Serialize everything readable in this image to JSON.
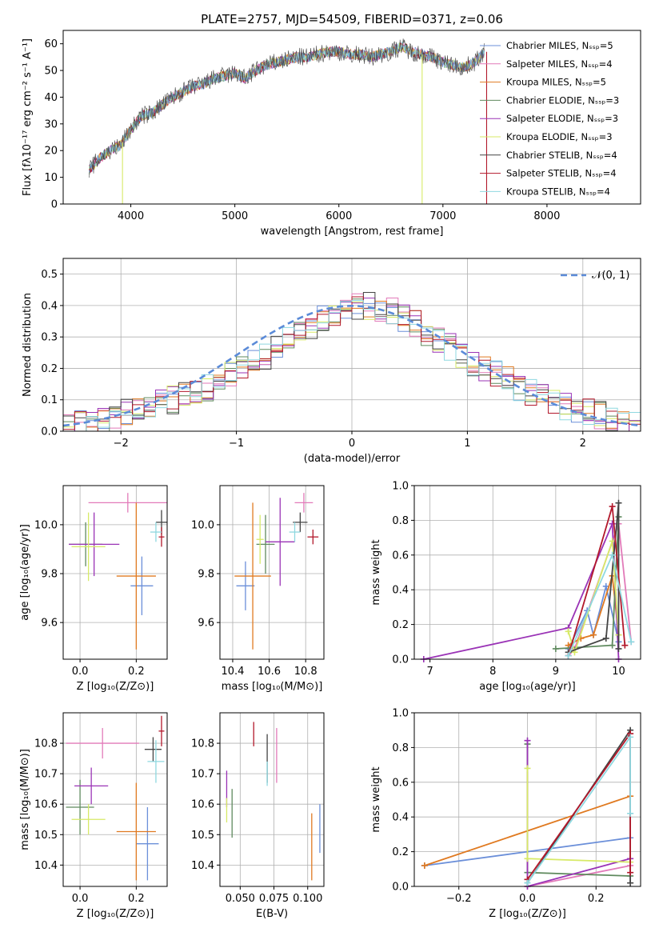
{
  "colors": [
    "#6b8fd9",
    "#e27ab9",
    "#e07a21",
    "#5f8a5e",
    "#9a33b6",
    "#d7ea67",
    "#444444",
    "#b2182b",
    "#8fd8e0"
  ],
  "chart_data": [
    {
      "id": "spectrum",
      "type": "line",
      "title": "PLATE=2757, MJD=54509, FIBERID=0371, z=0.06",
      "xlabel": "wavelength [Angstrom, rest frame]",
      "ylabel": "Flux [fλ10⁻¹⁷ erg cm⁻² s⁻¹ A⁻¹]",
      "xlim": [
        3350,
        8900
      ],
      "ylim": [
        0,
        65
      ],
      "xticks": [
        "4000",
        "5000",
        "6000",
        "7000",
        "8000"
      ],
      "yticks": [
        "0",
        "10",
        "20",
        "30",
        "40",
        "50",
        "60"
      ],
      "legend": "right",
      "series": [
        {
          "name": "Chabrier MILES, Nₛₛₚ=5"
        },
        {
          "name": "Salpeter MILES, Nₛₛₚ=4"
        },
        {
          "name": "Kroupa MILES, Nₛₛₚ=5"
        },
        {
          "name": "Chabrier ELODIE, Nₛₛₚ=3"
        },
        {
          "name": "Salpeter ELODIE, Nₛₛₚ=3"
        },
        {
          "name": "Kroupa ELODIE, Nₛₛₚ=3"
        },
        {
          "name": "Chabrier STELIB, Nₛₛₚ=4"
        },
        {
          "name": "Salpeter STELIB, Nₛₛₚ=4"
        },
        {
          "name": "Kroupa STELIB, Nₛₛₚ=4"
        }
      ],
      "continuum": {
        "x": [
          3600,
          3700,
          3800,
          3900,
          4000,
          4100,
          4200,
          4300,
          4400,
          4500,
          4600,
          4700,
          4800,
          4900,
          5000,
          5100,
          5200,
          5300,
          5400,
          5500,
          5600,
          5700,
          5800,
          5900,
          6000,
          6100,
          6200,
          6300,
          6400,
          6500,
          6600,
          6700,
          6800,
          6900,
          7000,
          7100,
          7200,
          7300,
          7400
        ],
        "y": [
          13,
          17,
          20,
          22,
          28,
          33,
          34,
          37,
          40,
          42,
          44,
          45,
          47,
          48,
          49,
          47,
          50,
          52,
          53,
          54,
          55,
          55,
          56,
          57,
          57,
          56,
          56,
          55,
          56,
          57,
          59,
          57,
          56,
          55,
          53,
          52,
          51,
          53,
          57
        ]
      },
      "spikes": [
        {
          "x": 3920,
          "y": 0,
          "series": 5
        },
        {
          "x": 6800,
          "y": 0,
          "series": 5
        },
        {
          "x": 7420,
          "y": 0,
          "series": 7
        }
      ]
    },
    {
      "id": "residuals",
      "type": "histogram",
      "xlabel": "(data-model)/error",
      "ylabel": "Normed distribution",
      "xlim": [
        -2.5,
        2.5
      ],
      "ylim": [
        0,
        0.55
      ],
      "xticks": [
        "−2",
        "−1",
        "0",
        "1",
        "2"
      ],
      "yticks": [
        "0.0",
        "0.1",
        "0.2",
        "0.3",
        "0.4",
        "0.5"
      ],
      "reference": {
        "name": "𝒩(0, 1)",
        "mean": 0,
        "sigma": 1
      },
      "bin_width": 0.1,
      "bin_start": -2.5,
      "values": [
        0.02,
        0.02,
        0.03,
        0.04,
        0.05,
        0.06,
        0.07,
        0.08,
        0.09,
        0.1,
        0.11,
        0.12,
        0.14,
        0.16,
        0.18,
        0.2,
        0.22,
        0.24,
        0.27,
        0.29,
        0.31,
        0.33,
        0.36,
        0.38,
        0.39,
        0.4,
        0.4,
        0.39,
        0.38,
        0.36,
        0.34,
        0.31,
        0.29,
        0.27,
        0.24,
        0.22,
        0.2,
        0.18,
        0.16,
        0.14,
        0.12,
        0.11,
        0.1,
        0.08,
        0.07,
        0.06,
        0.05,
        0.04,
        0.03,
        0.02
      ]
    },
    {
      "id": "age-vs-Z",
      "type": "errorbar",
      "xlabel": "Z [log₁₀(Z/Z⊙)]",
      "ylabel": "age  [log₁₀(age/yr)]",
      "xlim": [
        -0.06,
        0.31
      ],
      "ylim": [
        9.45,
        10.16
      ],
      "xticks": [
        "0.0",
        "0.2"
      ],
      "yticks": [
        "9.6",
        "9.8",
        "10.0"
      ],
      "points": [
        {
          "x": 0.22,
          "xerr": 0.04,
          "y": 9.75,
          "yerr": 0.12
        },
        {
          "x": 0.17,
          "xerr": 0.14,
          "y": 10.09,
          "yerr": 0.04
        },
        {
          "x": 0.2,
          "xerr": 0.07,
          "y": 9.79,
          "yerr": 0.3
        },
        {
          "x": 0.02,
          "xerr": 0.06,
          "y": 9.92,
          "yerr": 0.09
        },
        {
          "x": 0.05,
          "xerr": 0.09,
          "y": 9.92,
          "yerr": 0.13
        },
        {
          "x": 0.03,
          "xerr": 0.06,
          "y": 9.91,
          "yerr": 0.14
        },
        {
          "x": 0.29,
          "xerr": 0.02,
          "y": 10.01,
          "yerr": 0.05
        },
        {
          "x": 0.29,
          "xerr": 0.01,
          "y": 9.95,
          "yerr": 0.04
        },
        {
          "x": 0.27,
          "xerr": 0.02,
          "y": 9.97,
          "yerr": 0.04
        }
      ]
    },
    {
      "id": "age-vs-mass",
      "type": "errorbar",
      "xlabel": "mass [log₁₀(M/M⊙)]",
      "xlim": [
        10.33,
        10.9
      ],
      "ylim": [
        9.45,
        10.16
      ],
      "xticks": [
        "10.4",
        "10.6",
        "10.8"
      ],
      "yticks": [
        "9.6",
        "9.8",
        "10.0"
      ],
      "points": [
        {
          "x": 10.47,
          "xerr": 0.05,
          "y": 9.75,
          "yerr": 0.1
        },
        {
          "x": 10.79,
          "xerr": 0.05,
          "y": 10.09,
          "yerr": 0.04
        },
        {
          "x": 10.51,
          "xerr": 0.1,
          "y": 9.79,
          "yerr": 0.3
        },
        {
          "x": 10.58,
          "xerr": 0.05,
          "y": 9.92,
          "yerr": 0.12
        },
        {
          "x": 10.66,
          "xerr": 0.08,
          "y": 9.93,
          "yerr": 0.18
        },
        {
          "x": 10.55,
          "xerr": 0.02,
          "y": 9.94,
          "yerr": 0.1
        },
        {
          "x": 10.77,
          "xerr": 0.04,
          "y": 10.01,
          "yerr": 0.04
        },
        {
          "x": 10.84,
          "xerr": 0.03,
          "y": 9.95,
          "yerr": 0.03
        },
        {
          "x": 10.74,
          "xerr": 0.03,
          "y": 9.97,
          "yerr": 0.04
        }
      ]
    },
    {
      "id": "massweight-vs-age",
      "type": "line",
      "xlabel": "age  [log₁₀(age/yr)]",
      "ylabel": "mass weight",
      "xlim": [
        6.75,
        10.35
      ],
      "ylim": [
        0,
        1.0
      ],
      "xticks": [
        "7",
        "8",
        "9",
        "10"
      ],
      "yticks": [
        "0.0",
        "0.2",
        "0.4",
        "0.6",
        "0.8",
        "1.0"
      ],
      "series": [
        {
          "x": [
            9.2,
            9.5,
            9.6,
            9.8,
            10.0
          ],
          "y": [
            0.06,
            0.28,
            0.14,
            0.42,
            0.1
          ]
        },
        {
          "x": [
            9.2,
            9.3,
            10.0,
            10.2
          ],
          "y": [
            0.02,
            0.06,
            0.78,
            0.1
          ]
        },
        {
          "x": [
            9.2,
            9.4,
            9.6,
            9.9,
            10.0
          ],
          "y": [
            0.08,
            0.12,
            0.14,
            0.48,
            0.14
          ]
        },
        {
          "x": [
            9.0,
            9.9,
            10.0
          ],
          "y": [
            0.06,
            0.08,
            0.82
          ]
        },
        {
          "x": [
            6.9,
            9.2,
            9.9,
            10.0
          ],
          "y": [
            0.0,
            0.18,
            0.78,
            0.0
          ]
        },
        {
          "x": [
            9.2,
            9.3,
            9.9,
            10.0
          ],
          "y": [
            0.16,
            0.04,
            0.68,
            0.14
          ]
        },
        {
          "x": [
            9.2,
            9.8,
            10.0,
            10.0
          ],
          "y": [
            0.04,
            0.12,
            0.9,
            0.06
          ]
        },
        {
          "x": [
            9.2,
            9.9,
            10.1
          ],
          "y": [
            0.02,
            0.88,
            0.08
          ]
        },
        {
          "x": [
            9.2,
            9.9,
            10.2
          ],
          "y": [
            0.02,
            0.6,
            0.1
          ]
        }
      ]
    },
    {
      "id": "mass-vs-Z",
      "type": "errorbar",
      "xlabel": "Z [log₁₀(Z/Z⊙)]",
      "ylabel": "mass [log₁₀(M/M⊙)]",
      "xlim": [
        -0.06,
        0.31
      ],
      "ylim": [
        10.33,
        10.9
      ],
      "xticks": [
        "0.0",
        "0.2"
      ],
      "yticks": [
        "10.4",
        "10.5",
        "10.6",
        "10.7",
        "10.8"
      ],
      "points": [
        {
          "x": 0.24,
          "xerr": 0.04,
          "y": 10.47,
          "yerr": 0.12
        },
        {
          "x": 0.08,
          "xerr": 0.13,
          "y": 10.8,
          "yerr": 0.05
        },
        {
          "x": 0.2,
          "xerr": 0.07,
          "y": 10.51,
          "yerr": 0.16
        },
        {
          "x": 0.0,
          "xerr": 0.05,
          "y": 10.59,
          "yerr": 0.09
        },
        {
          "x": 0.04,
          "xerr": 0.06,
          "y": 10.66,
          "yerr": 0.06
        },
        {
          "x": 0.03,
          "xerr": 0.06,
          "y": 10.55,
          "yerr": 0.05
        },
        {
          "x": 0.26,
          "xerr": 0.03,
          "y": 10.78,
          "yerr": 0.04
        },
        {
          "x": 0.29,
          "xerr": 0.01,
          "y": 10.84,
          "yerr": 0.05
        },
        {
          "x": 0.27,
          "xerr": 0.03,
          "y": 10.74,
          "yerr": 0.07
        }
      ]
    },
    {
      "id": "mass-vs-ebv",
      "type": "errorbar",
      "xlabel": "E(B-V)",
      "xlim": [
        0.035,
        0.112
      ],
      "ylim": [
        10.33,
        10.9
      ],
      "xticks": [
        "0.050",
        "0.075",
        "0.100"
      ],
      "yticks": [
        "10.4",
        "10.5",
        "10.6",
        "10.7",
        "10.8"
      ],
      "points": [
        {
          "x": 0.109,
          "xerr": 0,
          "y": 10.52,
          "yerr": 0.08
        },
        {
          "x": 0.077,
          "xerr": 0,
          "y": 10.76,
          "yerr": 0.09
        },
        {
          "x": 0.103,
          "xerr": 0,
          "y": 10.46,
          "yerr": 0.11
        },
        {
          "x": 0.044,
          "xerr": 0,
          "y": 10.57,
          "yerr": 0.08
        },
        {
          "x": 0.04,
          "xerr": 0,
          "y": 10.65,
          "yerr": 0.06
        },
        {
          "x": 0.04,
          "xerr": 0,
          "y": 10.58,
          "yerr": 0.04
        },
        {
          "x": 0.07,
          "xerr": 0,
          "y": 10.75,
          "yerr": 0.08
        },
        {
          "x": 0.06,
          "xerr": 0,
          "y": 10.83,
          "yerr": 0.04
        },
        {
          "x": 0.07,
          "xerr": 0,
          "y": 10.7,
          "yerr": 0.04
        }
      ]
    },
    {
      "id": "massweight-vs-Z",
      "type": "line",
      "xlabel": "Z [log₁₀(Z/Z⊙)]",
      "ylabel": "mass weight",
      "xlim": [
        -0.33,
        0.33
      ],
      "ylim": [
        0,
        1.0
      ],
      "xticks": [
        "−0.2",
        "0.0",
        "0.2"
      ],
      "yticks": [
        "0.0",
        "0.2",
        "0.4",
        "0.6",
        "0.8",
        "1.0"
      ],
      "series": [
        {
          "x": [
            -0.3,
            0.3
          ],
          "y": [
            0.12,
            0.28
          ]
        },
        {
          "x": [
            0.0,
            0.3
          ],
          "y": [
            0.0,
            0.12
          ]
        },
        {
          "x": [
            -0.3,
            0.3
          ],
          "y": [
            0.12,
            0.52
          ]
        },
        {
          "x": [
            0.0,
            0.0,
            0.3
          ],
          "y": [
            0.82,
            0.08,
            0.06
          ]
        },
        {
          "x": [
            0.0,
            0.0,
            0.3
          ],
          "y": [
            0.84,
            0.0,
            0.16
          ]
        },
        {
          "x": [
            0.0,
            0.0,
            0.3
          ],
          "y": [
            0.68,
            0.16,
            0.14
          ]
        },
        {
          "x": [
            0.0,
            0.3,
            0.3
          ],
          "y": [
            0.02,
            0.9,
            0.02
          ]
        },
        {
          "x": [
            0.0,
            0.3,
            0.3
          ],
          "y": [
            0.04,
            0.88,
            0.08
          ]
        },
        {
          "x": [
            0.0,
            0.3,
            0.3
          ],
          "y": [
            0.02,
            0.86,
            0.42
          ]
        }
      ]
    }
  ]
}
